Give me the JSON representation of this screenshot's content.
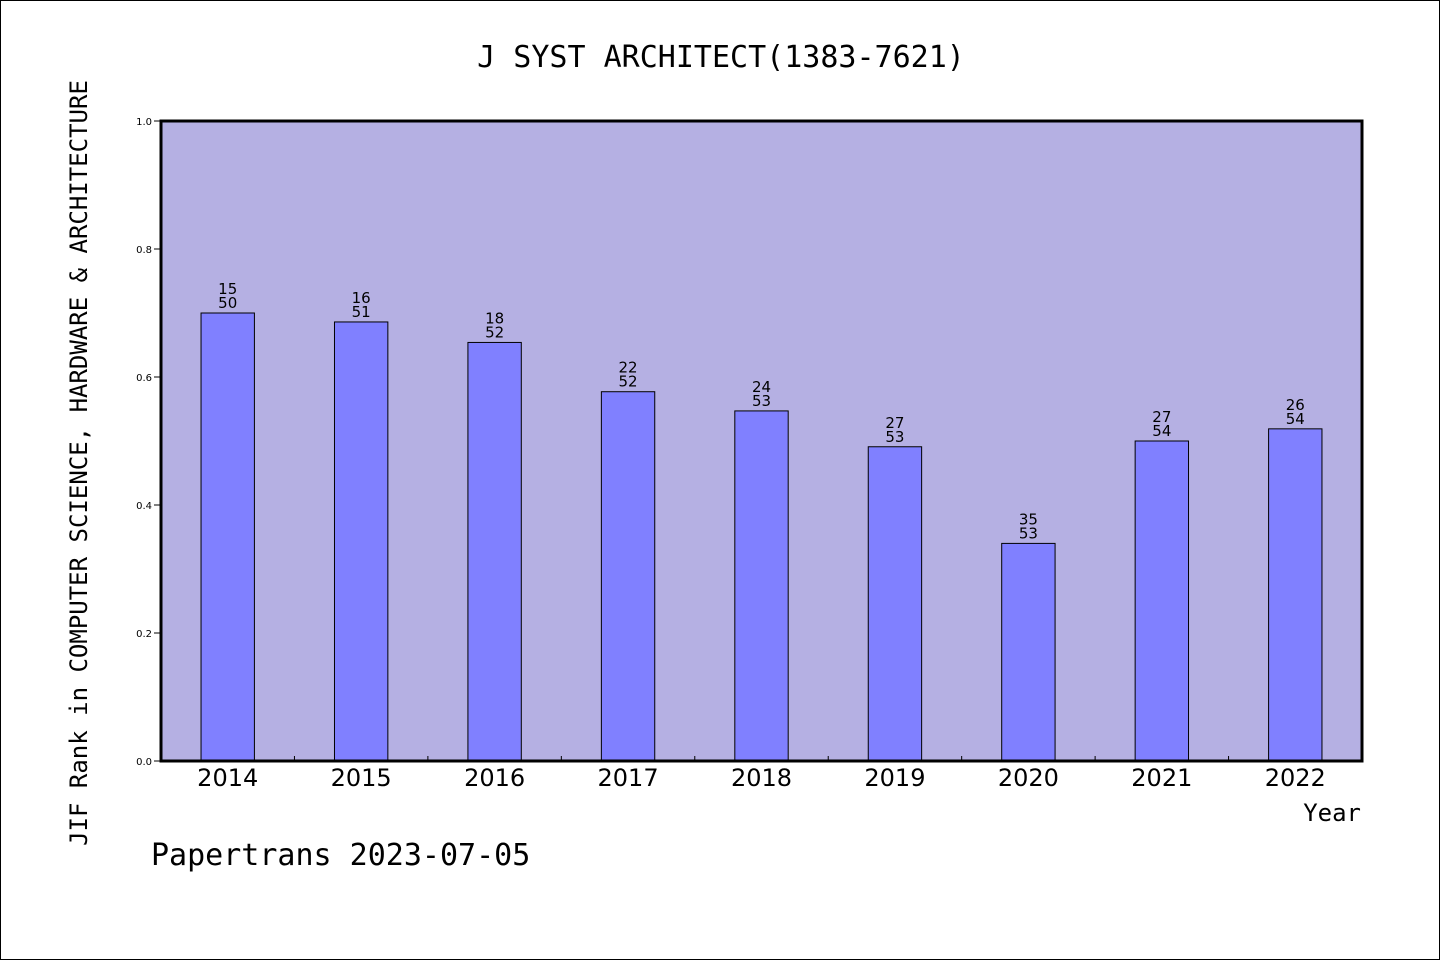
{
  "chart_data": {
    "type": "bar",
    "title": "J SYST ARCHITECT(1383-7621)",
    "ylabel": "JIF Rank in COMPUTER SCIENCE, HARDWARE & ARCHITECTURE",
    "xlabel": "Year",
    "categories": [
      "2014",
      "2015",
      "2016",
      "2017",
      "2018",
      "2019",
      "2020",
      "2021",
      "2022"
    ],
    "values": [
      0.7,
      0.686,
      0.654,
      0.577,
      0.547,
      0.491,
      0.34,
      0.5,
      0.519
    ],
    "bar_labels": [
      {
        "top": "15",
        "bottom": "50"
      },
      {
        "top": "16",
        "bottom": "51"
      },
      {
        "top": "18",
        "bottom": "52"
      },
      {
        "top": "22",
        "bottom": "52"
      },
      {
        "top": "24",
        "bottom": "53"
      },
      {
        "top": "27",
        "bottom": "53"
      },
      {
        "top": "35",
        "bottom": "53"
      },
      {
        "top": "27",
        "bottom": "54"
      },
      {
        "top": "26",
        "bottom": "54"
      }
    ],
    "ylim": [
      0,
      1.0
    ],
    "yticks": [
      "0.0",
      "0.2",
      "0.4",
      "0.6",
      "0.8",
      "1.0"
    ],
    "grid": false,
    "colors": {
      "plot_background": "#b5b0e3",
      "bar_fill": "#8080ff",
      "bar_stroke": "#000000"
    }
  },
  "footer": "Papertrans 2023-07-05"
}
